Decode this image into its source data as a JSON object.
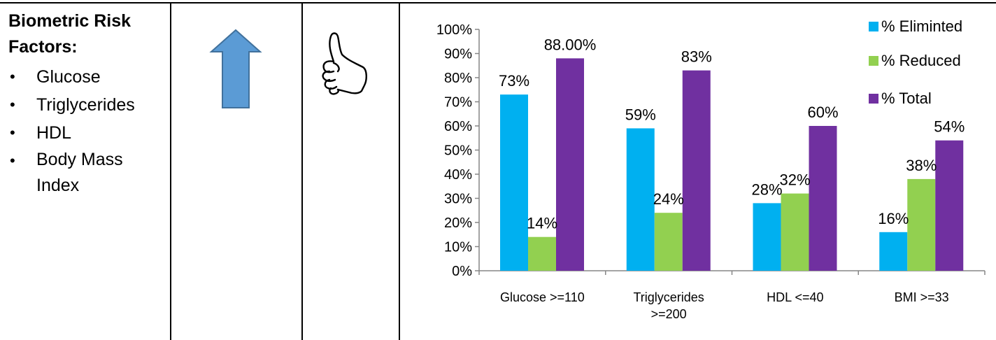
{
  "risk_factors": {
    "heading_line1": "Biometric Risk",
    "heading_line2": "Factors:",
    "items": [
      "Glucose",
      "Triglycerides",
      "HDL",
      "Body Mass Index"
    ]
  },
  "icons": {
    "trend": "up-arrow-icon",
    "approval": "thumbs-up-icon"
  },
  "colors": {
    "eliminated": "#00B0F0",
    "reduced": "#92D050",
    "total": "#7030A0",
    "arrow_fill": "#5B9BD5",
    "arrow_stroke": "#41719C"
  },
  "chart_data": {
    "type": "bar",
    "categories": [
      "Glucose >=110",
      "Triglycerides >=200",
      "HDL <=40",
      "BMI >=33"
    ],
    "series": [
      {
        "name": "% Eliminted",
        "values": [
          73,
          59,
          28,
          16
        ],
        "labels": [
          "73%",
          "59%",
          "28%",
          "16%"
        ],
        "color": "#00B0F0"
      },
      {
        "name": "% Reduced",
        "values": [
          14,
          24,
          32,
          38
        ],
        "labels": [
          "14%",
          "24%",
          "32%",
          "38%"
        ],
        "color": "#92D050"
      },
      {
        "name": "% Total",
        "values": [
          88,
          83,
          60,
          54
        ],
        "labels": [
          "88.00%",
          "83%",
          "60%",
          "54%"
        ],
        "color": "#7030A0"
      }
    ],
    "yticks": [
      "0%",
      "10%",
      "20%",
      "30%",
      "40%",
      "50%",
      "60%",
      "70%",
      "80%",
      "90%",
      "100%"
    ],
    "ylim": [
      0,
      100
    ],
    "title": "",
    "xlabel": "",
    "ylabel": "",
    "legend": "top-right",
    "grid": false
  }
}
